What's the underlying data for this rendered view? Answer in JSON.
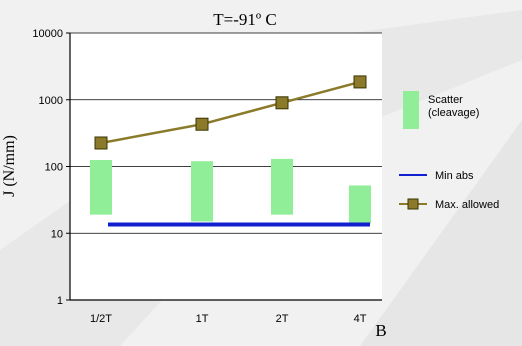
{
  "chart_data": {
    "type": "bar",
    "title": "T=-91º C",
    "xlabel": "B",
    "ylabel": "J (N/mm)",
    "yscale": "log",
    "ylim": [
      1,
      10000
    ],
    "yticks": [
      1,
      10,
      100,
      1000,
      10000
    ],
    "ytick_labels": [
      "1",
      "10",
      "100",
      "1000",
      "10000"
    ],
    "grid": true,
    "legend_position": "right",
    "categories": [
      "1/2T",
      "1T",
      "2T",
      "4T"
    ],
    "series": [
      {
        "name": "Scatter (cleavage)",
        "type": "range-bar",
        "color": "#90ee98",
        "low": [
          19,
          15,
          19,
          14
        ],
        "high": [
          125,
          120,
          130,
          52
        ]
      },
      {
        "name": "Min abs",
        "type": "line",
        "color": "#1020d0",
        "values": [
          13.5,
          13.5,
          13.5,
          13.5
        ]
      },
      {
        "name": "Max. allowed",
        "type": "line",
        "color": "#8a7a2a",
        "marker": "square",
        "values": [
          225,
          430,
          900,
          1850
        ]
      }
    ]
  }
}
